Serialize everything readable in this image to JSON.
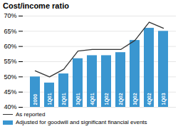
{
  "chart_data": {
    "type": "bar",
    "title": "Cost/income ratio",
    "categories": [
      "2000",
      "1Q01",
      "2Q01",
      "3Q01",
      "4Q01",
      "1Q02",
      "2Q02",
      "3Q02",
      "4Q02",
      "1Q03"
    ],
    "series": [
      {
        "name": "As reported",
        "type": "line",
        "color": "#333333",
        "values": [
          52,
          50,
          52.5,
          58.5,
          59,
          59,
          59,
          62,
          68,
          66
        ]
      },
      {
        "name": "Adjusted for goodwill and significant financial events",
        "type": "bar",
        "color": "#3a96d0",
        "values": [
          50,
          48,
          51,
          56,
          57,
          57,
          58,
          62,
          66,
          65
        ]
      }
    ],
    "ylim": [
      40,
      70
    ],
    "yticks": [
      {
        "value": 40,
        "label": "40%"
      },
      {
        "value": 45,
        "label": "45%"
      },
      {
        "value": 50,
        "label": "50%"
      },
      {
        "value": 55,
        "label": "55%"
      },
      {
        "value": 60,
        "label": "60%"
      },
      {
        "value": 65,
        "label": "65%"
      },
      {
        "value": 70,
        "label": "70%"
      }
    ],
    "grid": true,
    "legend": "lower left"
  }
}
